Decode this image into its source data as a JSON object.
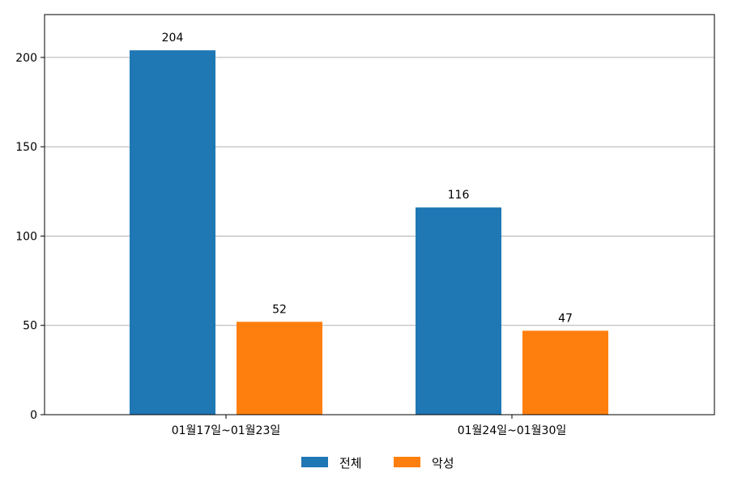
{
  "chart_data": {
    "type": "bar",
    "title": "",
    "xlabel": "",
    "ylabel": "",
    "categories": [
      "01월17일~01월23일",
      "01월24일~01월30일"
    ],
    "series": [
      {
        "name": "전체",
        "values": [
          204,
          116
        ],
        "color": "#1f77b4"
      },
      {
        "name": "악성",
        "values": [
          52,
          47
        ],
        "color": "#ff7f0e"
      }
    ],
    "ylim": [
      0,
      224
    ],
    "yticks": [
      0,
      50,
      100,
      150,
      200
    ],
    "grid": "y-major",
    "legend": "bottom-center",
    "data_labels": true
  }
}
